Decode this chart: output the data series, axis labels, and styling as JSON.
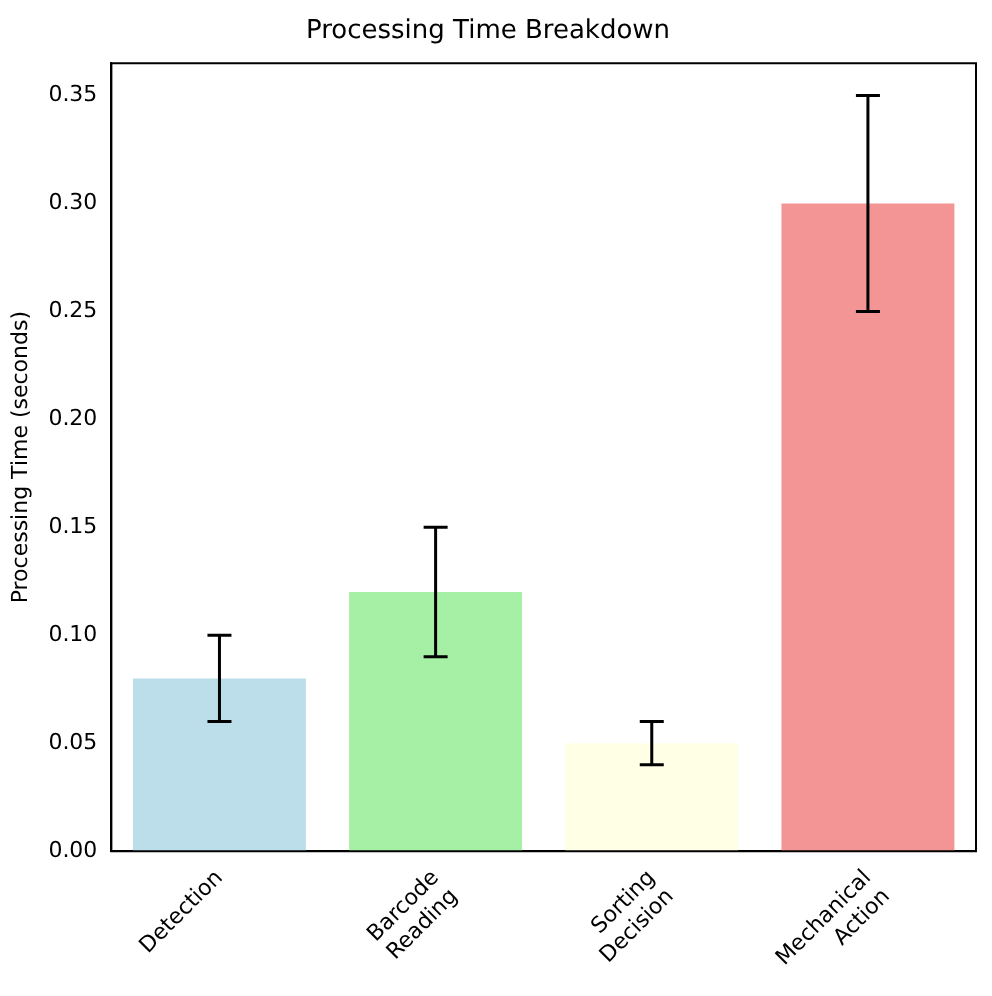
{
  "chart_data": {
    "type": "bar",
    "title": "Processing Time Breakdown",
    "ylabel": "Processing Time (seconds)",
    "categories": [
      "Detection",
      "Barcode Reading",
      "Sorting Decision",
      "Mechanical Action"
    ],
    "values": [
      0.08,
      0.12,
      0.05,
      0.3
    ],
    "errors": [
      0.02,
      0.03,
      0.01,
      0.05
    ],
    "colors": [
      "#bcdeea",
      "#a5f0a5",
      "#ffffe5",
      "#f39595"
    ],
    "ylim": [
      0,
      0.365
    ],
    "yticks": [
      {
        "value": 0,
        "label": "0.00"
      },
      0.05,
      {
        "value": 0.1,
        "label": "0.10"
      },
      0.15,
      {
        "value": 0.2,
        "label": "0.20"
      },
      0.25,
      {
        "value": 0.3,
        "label": "0.30"
      },
      0.35
    ],
    "grid": false,
    "legend": false
  }
}
